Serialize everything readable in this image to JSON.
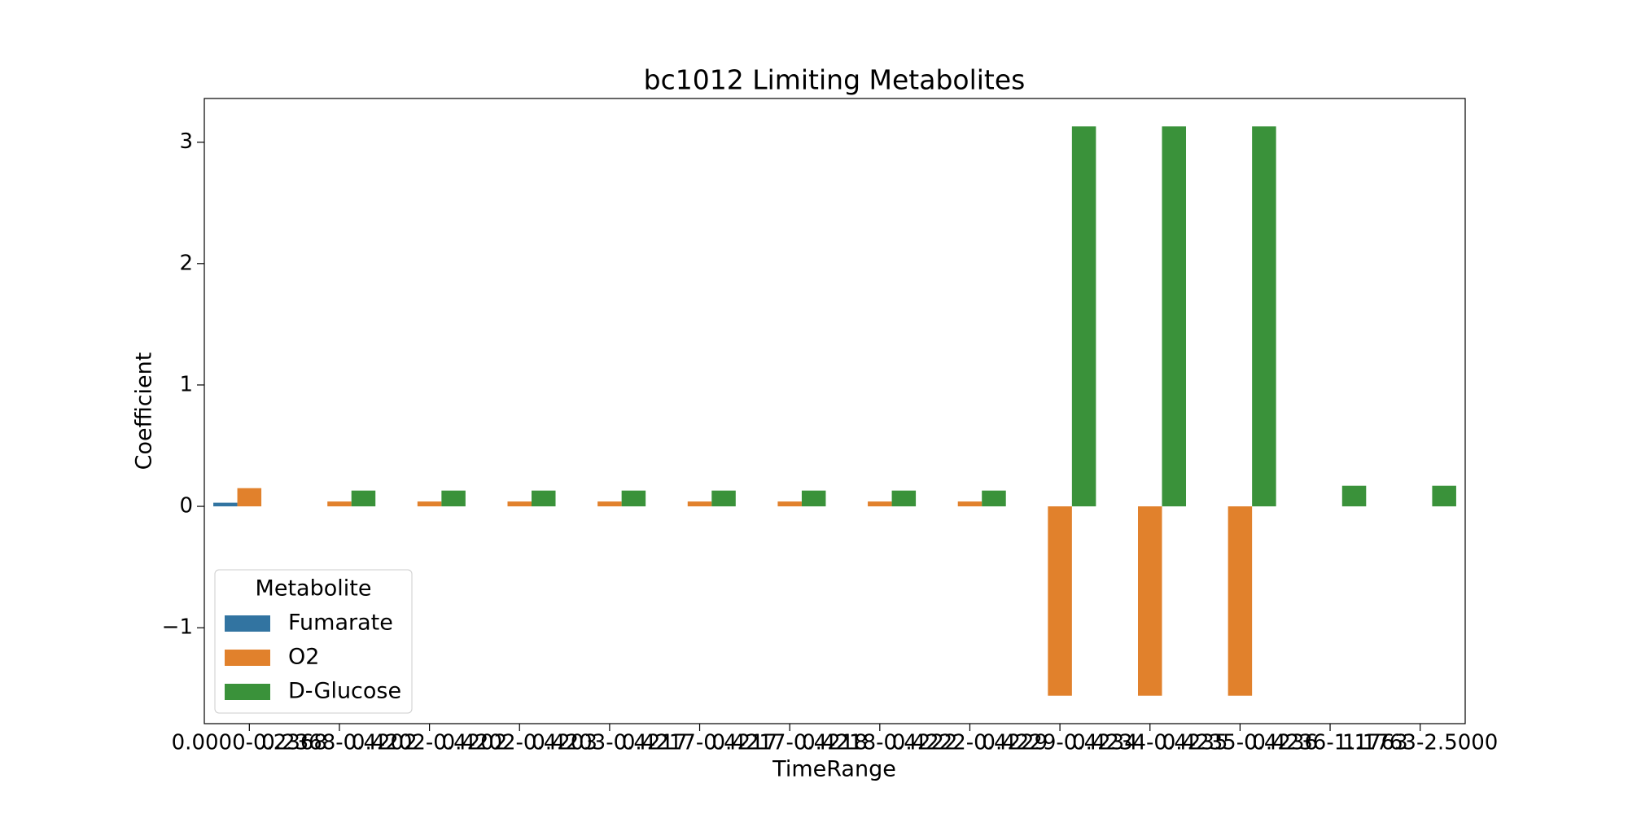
{
  "chart_data": {
    "type": "bar",
    "title": "bc1012 Limiting Metabolites",
    "x_label": "TimeRange",
    "y_label": "Coefficient",
    "categories": [
      "0.0000-0.2368",
      "0.2368-0.4202",
      "0.4202-0.4202",
      "0.4202-0.4203",
      "0.4203-0.4217",
      "0.4217-0.4217",
      "0.4217-0.4218",
      "0.4218-0.4222",
      "0.4222-0.4229",
      "0.4229-0.4234",
      "0.4234-0.4235",
      "0.4235-0.4236",
      "0.4236-1.1763",
      "1.1763-2.5000"
    ],
    "series": [
      {
        "name": "Fumarate",
        "color": "#3274a1",
        "values": [
          0.03,
          null,
          null,
          null,
          null,
          null,
          null,
          null,
          null,
          null,
          null,
          null,
          null,
          null
        ]
      },
      {
        "name": "O2",
        "color": "#e1812c",
        "values": [
          0.15,
          0.04,
          0.04,
          0.04,
          0.04,
          0.04,
          0.04,
          0.04,
          0.04,
          -1.56,
          -1.56,
          -1.56,
          null,
          null
        ]
      },
      {
        "name": "D-Glucose",
        "color": "#3a923a",
        "values": [
          null,
          0.13,
          0.13,
          0.13,
          0.13,
          0.13,
          0.13,
          0.13,
          0.13,
          3.13,
          3.13,
          3.13,
          0.17,
          0.17
        ]
      }
    ],
    "legend_title": "Metabolite",
    "legend_position": "lower left",
    "ylim": [
      -1.79,
      3.36
    ],
    "yticks": [
      {
        "value": -1,
        "label": "−1"
      },
      0,
      1,
      2,
      3
    ],
    "grid": false
  }
}
